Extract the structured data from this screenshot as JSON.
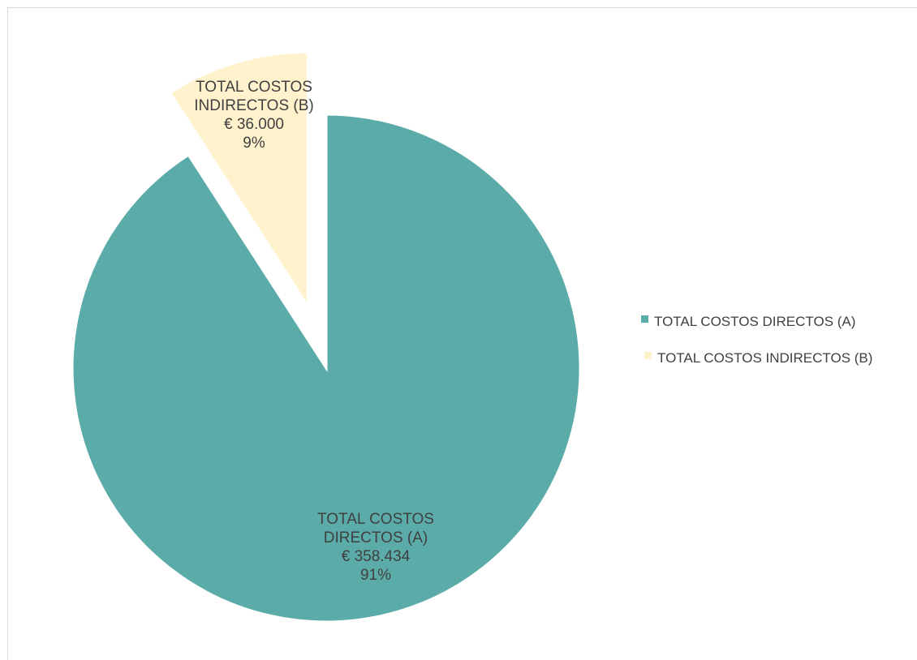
{
  "chart_data": {
    "type": "pie",
    "title": "",
    "exploded": true,
    "legend_position": "right",
    "slices": [
      {
        "name": "TOTAL COSTOS DIRECTOS (A)",
        "value": 358434,
        "value_label": "€ 358.434",
        "percent_label": "91%",
        "label_lines": [
          "TOTAL COSTOS",
          "DIRECTOS (A)"
        ],
        "color": "#5BABA8"
      },
      {
        "name": "TOTAL COSTOS INDIRECTOS (B)",
        "value": 36000,
        "value_label": "€ 36.000",
        "percent_label": "9%",
        "label_lines": [
          "TOTAL COSTOS",
          "INDIRECTOS (B)"
        ],
        "color": "#FFF2CC"
      }
    ]
  }
}
